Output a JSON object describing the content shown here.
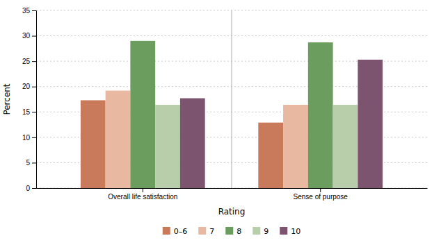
{
  "chart_data": {
    "type": "bar",
    "categories": [
      "Overall life satisfaction",
      "Sense of purpose"
    ],
    "series": [
      {
        "name": "0–6",
        "color": "#c87a5a",
        "values": [
          17.3,
          12.9
        ]
      },
      {
        "name": "7",
        "color": "#e8b8a0",
        "values": [
          19.2,
          16.4
        ]
      },
      {
        "name": "8",
        "color": "#6b9e5e",
        "values": [
          29.0,
          28.7
        ]
      },
      {
        "name": "9",
        "color": "#b8ceaa",
        "values": [
          16.4,
          16.4
        ]
      },
      {
        "name": "10",
        "color": "#7d5470",
        "values": [
          17.7,
          25.3
        ]
      }
    ],
    "xlabel": "Rating",
    "ylabel": "Percent",
    "ylim": [
      0,
      35
    ],
    "yticks": [
      0,
      5,
      10,
      15,
      20,
      25,
      30,
      35
    ],
    "grid": true,
    "legend": "bottom"
  }
}
